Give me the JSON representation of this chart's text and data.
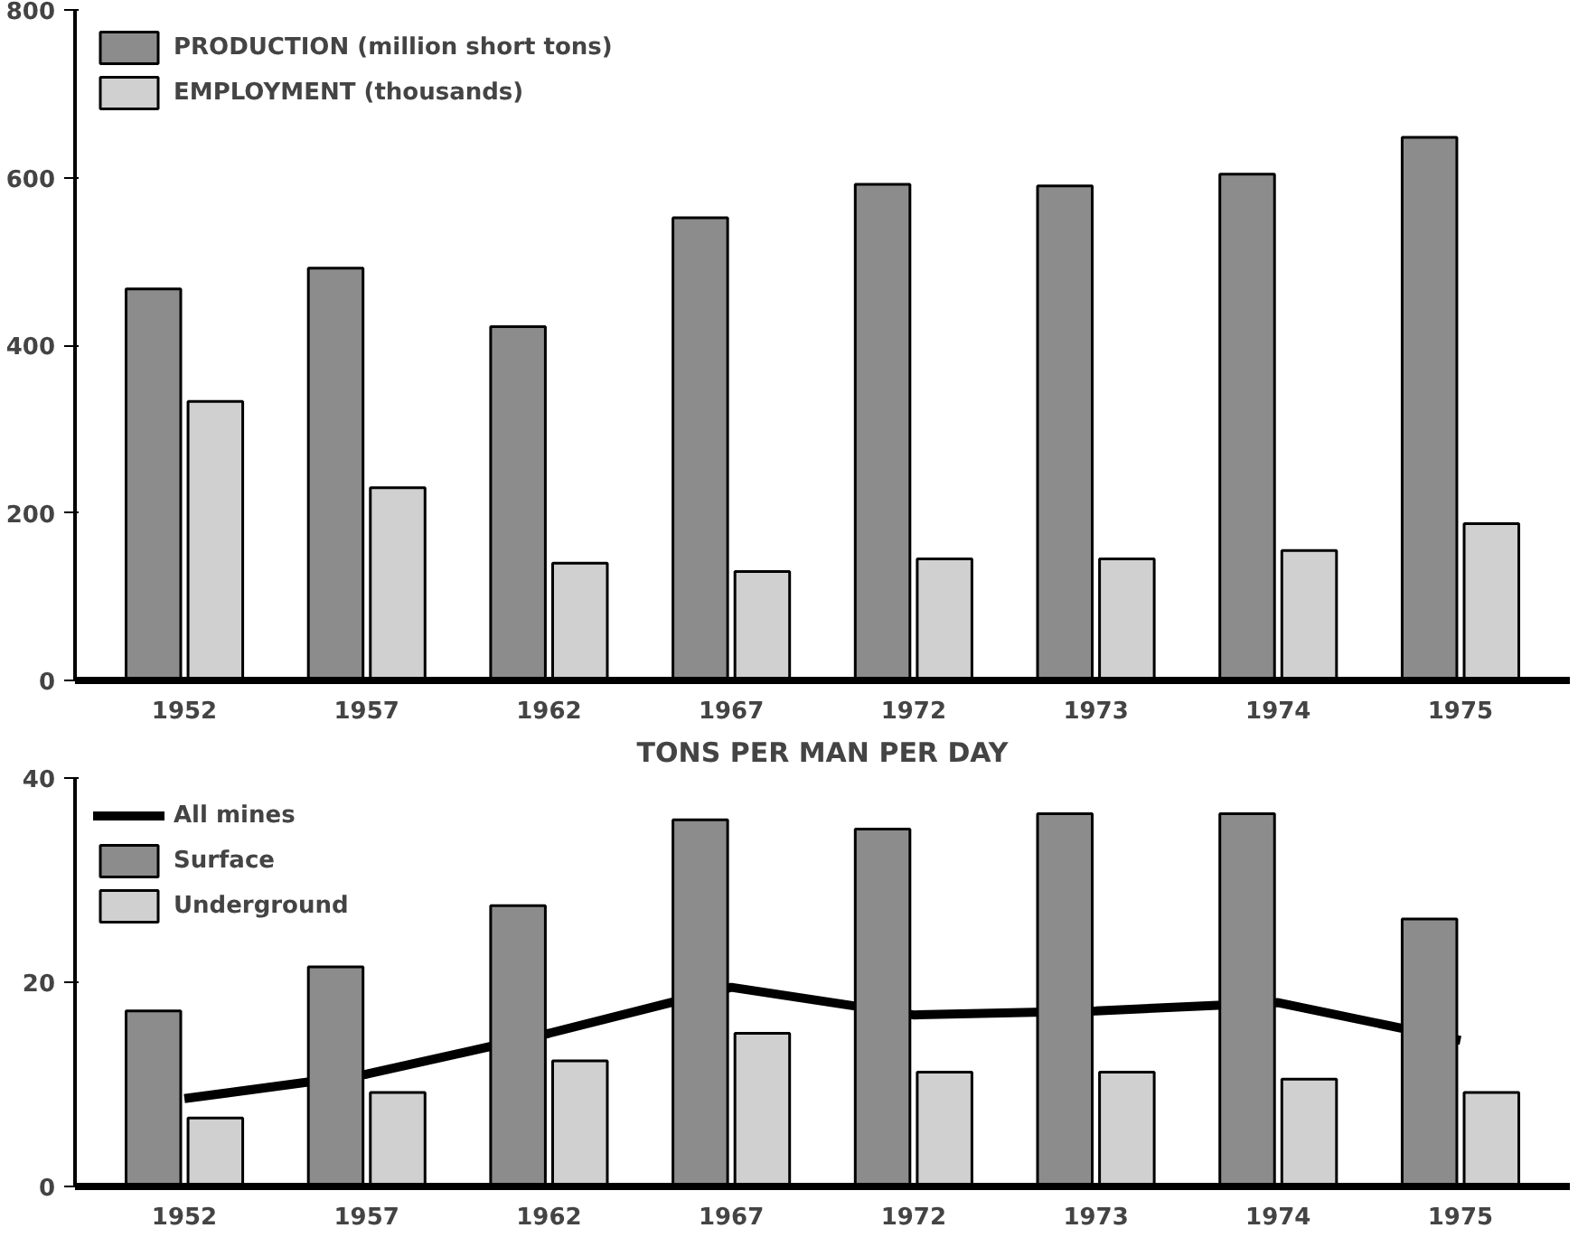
{
  "chart_data": [
    {
      "type": "bar",
      "categories": [
        "1952",
        "1957",
        "1962",
        "1967",
        "1972",
        "1973",
        "1974",
        "1975"
      ],
      "ylim": [
        0,
        800
      ],
      "yticks": [
        0,
        200,
        400,
        600,
        800
      ],
      "grid": false,
      "legend": "top left",
      "series": [
        {
          "name": "PRODUCTION (million short tons)",
          "color": "#8c8c8c",
          "values": [
            467,
            492,
            422,
            552,
            592,
            590,
            604,
            648
          ]
        },
        {
          "name": "EMPLOYMENT (thousands)",
          "color": "#d0d0d0",
          "values": [
            333,
            230,
            140,
            130,
            145,
            145,
            155,
            187
          ]
        }
      ]
    },
    {
      "type": "bar",
      "title": "TONS PER MAN PER DAY",
      "categories": [
        "1952",
        "1957",
        "1962",
        "1967",
        "1972",
        "1973",
        "1974",
        "1975"
      ],
      "ylim": [
        0,
        40
      ],
      "yticks": [
        0,
        20,
        40
      ],
      "grid": false,
      "legend": "top left",
      "marker": "none",
      "line_style": "solid",
      "series": [
        {
          "name": "All mines",
          "type": "line",
          "color": "#000000",
          "values": [
            8.6,
            11,
            15,
            19.5,
            16.8,
            17.2,
            18,
            14.3
          ]
        },
        {
          "name": "Surface",
          "color": "#8c8c8c",
          "values": [
            17.2,
            21.5,
            27.5,
            35.9,
            35,
            36.5,
            36.5,
            26.2
          ]
        },
        {
          "name": "Underground",
          "color": "#d0d0d0",
          "values": [
            6.7,
            9.2,
            12.3,
            15,
            11.2,
            11.2,
            10.5,
            9.2
          ]
        }
      ]
    }
  ]
}
